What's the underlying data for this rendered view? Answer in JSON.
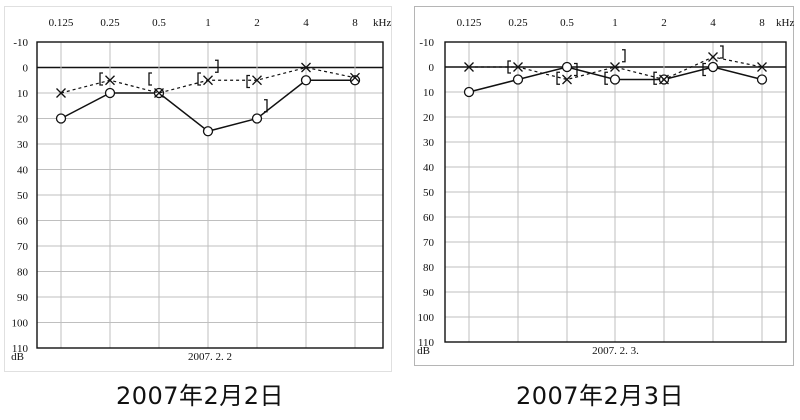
{
  "chart_data": [
    {
      "type": "line",
      "title": "",
      "x_unit": "kHz",
      "y_unit": "dB",
      "categories": [
        "0.125",
        "0.25",
        "0.5",
        "1",
        "2",
        "4",
        "8"
      ],
      "y_ticks": [
        -10,
        0,
        10,
        20,
        30,
        40,
        50,
        60,
        70,
        80,
        90,
        100,
        110
      ],
      "ylim": [
        -10,
        110
      ],
      "y_inverted": true,
      "grid": true,
      "date_label": "2007. 2. 2",
      "caption": "2007年2月2日",
      "series": [
        {
          "marker": "circle",
          "style": "solid",
          "values": [
            20,
            10,
            10,
            25,
            20,
            5,
            5
          ]
        },
        {
          "marker": "cross",
          "style": "dashed",
          "values": [
            10,
            5,
            10,
            5,
            5,
            0,
            4
          ]
        },
        {
          "marker": "bracket",
          "style": "none",
          "points": [
            {
              "x": "0.25",
              "y": 4.5
            },
            {
              "x": "0.5",
              "y": 4.5
            },
            {
              "x": "1",
              "y": 4.5
            },
            {
              "x": "1",
              "y": -0.5
            },
            {
              "x": "2",
              "y": 5.5
            },
            {
              "x": "2",
              "y": 15
            }
          ]
        }
      ]
    },
    {
      "type": "line",
      "title": "",
      "x_unit": "kHz",
      "y_unit": "dB",
      "categories": [
        "0.125",
        "0.25",
        "0.5",
        "1",
        "2",
        "4",
        "8"
      ],
      "y_ticks": [
        -10,
        0,
        10,
        20,
        30,
        40,
        50,
        60,
        70,
        80,
        90,
        100,
        110
      ],
      "ylim": [
        -10,
        110
      ],
      "y_inverted": true,
      "grid": true,
      "date_label": "2007. 2. 3.",
      "caption": "2007年2月3日",
      "series": [
        {
          "marker": "circle",
          "style": "solid",
          "values": [
            10,
            5,
            0,
            5,
            5,
            0,
            5
          ]
        },
        {
          "marker": "cross",
          "style": "dashed",
          "values": [
            0,
            0,
            5,
            0,
            5,
            -4,
            0
          ]
        },
        {
          "marker": "bracket",
          "style": "none",
          "points": [
            {
              "x": "0.25",
              "y": 0
            },
            {
              "x": "0.5",
              "y": 4.5
            },
            {
              "x": "0.5",
              "y": 1
            },
            {
              "x": "1",
              "y": 4.5
            },
            {
              "x": "1",
              "y": -4.5
            },
            {
              "x": "2",
              "y": 4.5
            },
            {
              "x": "4",
              "y": 1
            },
            {
              "x": "4",
              "y": -6
            }
          ]
        }
      ]
    }
  ]
}
